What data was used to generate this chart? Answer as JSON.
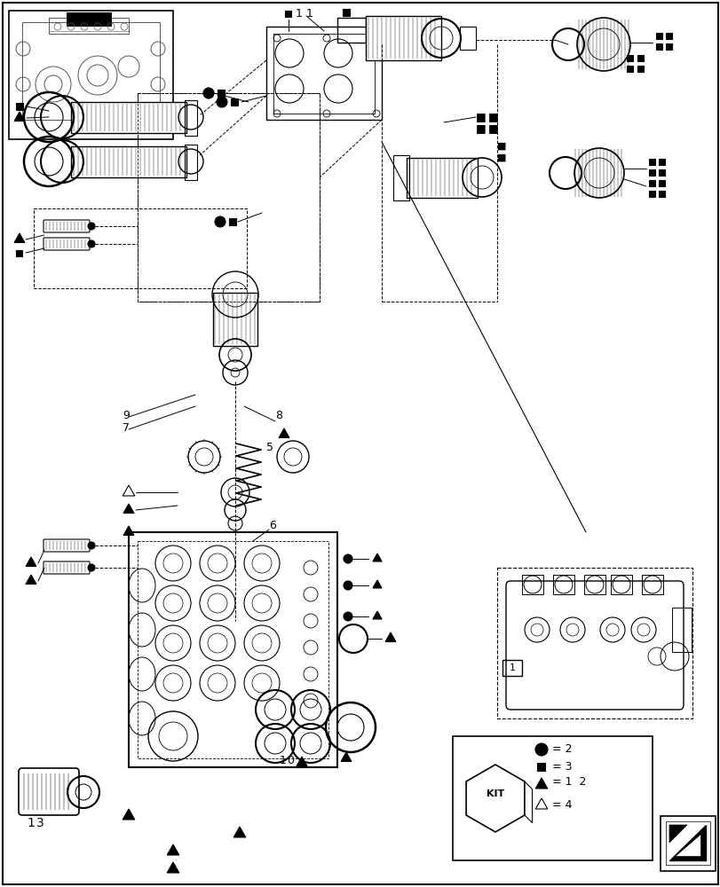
{
  "bg_color": "#ffffff",
  "lc": "#000000",
  "fig_width": 8.12,
  "fig_height": 10.0,
  "dpi": 100
}
